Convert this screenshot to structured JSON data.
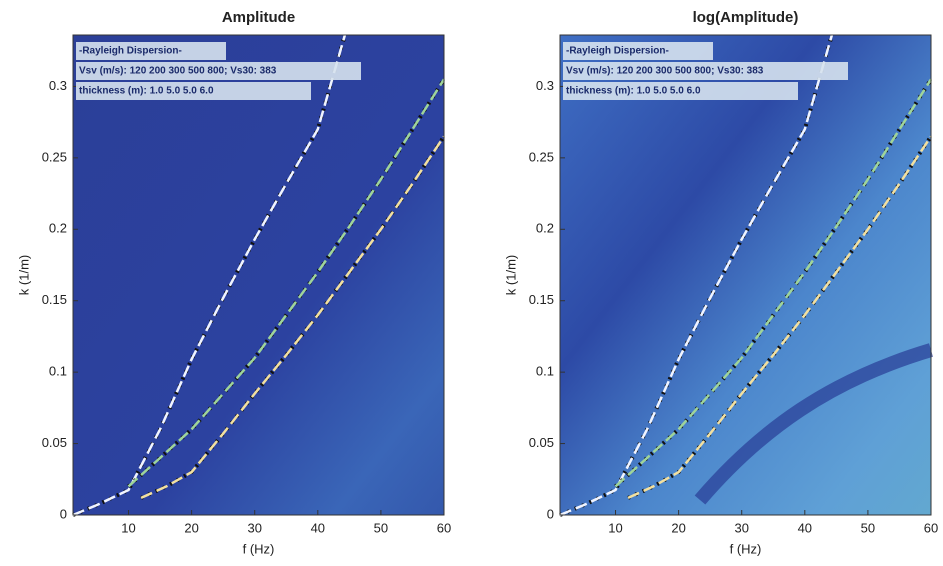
{
  "chart_data": [
    {
      "type": "line",
      "title": "Amplitude",
      "x_label": "f (Hz)",
      "y_label": "k (1/m)",
      "annotations": [
        "-Rayleigh Dispersion-",
        "Vsv (m/s): 120 200 300 500 800; Vs30: 383",
        "thickness (m): 1.0 5.0 5.0 6.0"
      ],
      "xlim": [
        1.2,
        60
      ],
      "ylim": [
        0,
        0.336
      ],
      "xticks": [
        10,
        20,
        30,
        40,
        50,
        60
      ],
      "yticks": [
        0,
        0.05,
        0.1,
        0.15,
        0.2,
        0.25,
        0.3
      ],
      "series": [
        {
          "color": "#f0f4ff",
          "x": [
            1.2,
            5,
            10,
            15,
            20,
            25,
            30,
            35,
            40,
            44.3
          ],
          "values": [
            0,
            0.007,
            0.0175,
            0.06,
            0.109,
            0.152,
            0.193,
            0.232,
            0.27,
            0.336
          ]
        },
        {
          "color": "#9fd49a",
          "x": [
            10,
            15,
            20,
            25,
            30,
            35,
            40,
            45,
            50,
            55,
            60
          ],
          "values": [
            0.02,
            0.04,
            0.06,
            0.085,
            0.11,
            0.14,
            0.17,
            0.202,
            0.235,
            0.27,
            0.305
          ]
        },
        {
          "color": "#f2e0a0",
          "x": [
            12,
            16,
            20,
            25,
            30,
            35,
            40,
            45,
            50,
            55,
            60
          ],
          "values": [
            0.012,
            0.02,
            0.03,
            0.057,
            0.085,
            0.112,
            0.14,
            0.17,
            0.2,
            0.232,
            0.265
          ]
        }
      ]
    },
    {
      "type": "line",
      "title": "log(Amplitude)",
      "x_label": "f (Hz)",
      "y_label": "k (1/m)",
      "annotations": [
        "-Rayleigh Dispersion-",
        "Vsv (m/s): 120 200 300 500 800; Vs30: 383",
        "thickness (m): 1.0 5.0 5.0 6.0"
      ],
      "xlim": [
        1.2,
        60
      ],
      "ylim": [
        0,
        0.336
      ],
      "xticks": [
        10,
        20,
        30,
        40,
        50,
        60
      ],
      "yticks": [
        0,
        0.05,
        0.1,
        0.15,
        0.2,
        0.25,
        0.3
      ],
      "series": [
        {
          "color": "#f0f4ff",
          "x": [
            1.2,
            5,
            10,
            15,
            20,
            25,
            30,
            35,
            40,
            44.3
          ],
          "values": [
            0,
            0.007,
            0.0175,
            0.06,
            0.109,
            0.152,
            0.193,
            0.232,
            0.27,
            0.336
          ]
        },
        {
          "color": "#9fd49a",
          "x": [
            10,
            15,
            20,
            25,
            30,
            35,
            40,
            45,
            50,
            55,
            60
          ],
          "values": [
            0.02,
            0.04,
            0.06,
            0.085,
            0.11,
            0.14,
            0.17,
            0.202,
            0.235,
            0.27,
            0.305
          ]
        },
        {
          "color": "#f2e0a0",
          "x": [
            12,
            16,
            20,
            25,
            30,
            35,
            40,
            45,
            50,
            55,
            60
          ],
          "values": [
            0.012,
            0.02,
            0.03,
            0.057,
            0.085,
            0.112,
            0.14,
            0.17,
            0.2,
            0.232,
            0.265
          ]
        }
      ]
    }
  ]
}
